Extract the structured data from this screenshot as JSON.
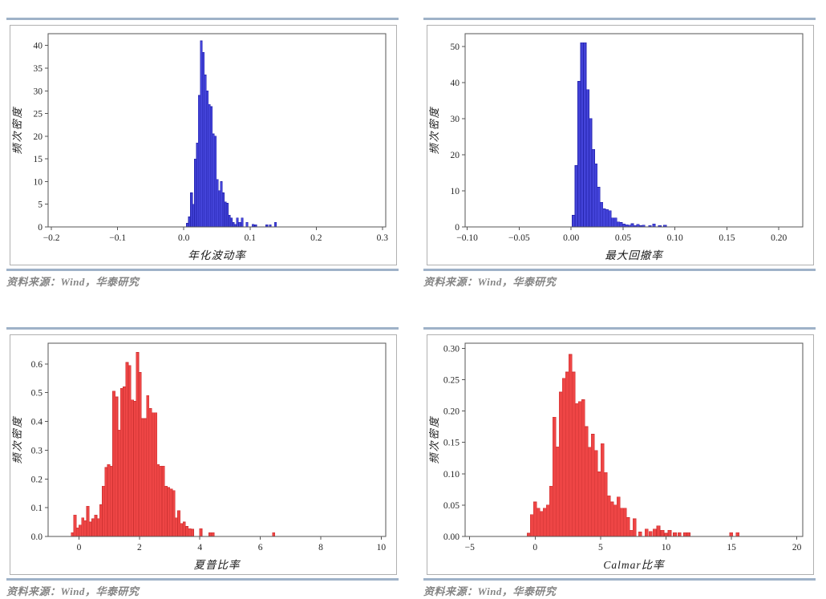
{
  "theme": {
    "rule_color": "#9fb2c8",
    "caption_color": "#858585",
    "figure_border": "#b0b0b0",
    "axis_color": "#555555",
    "tick_label_color": "#262626",
    "axis_label_color": "#1a1a1a",
    "blue_bar_fill": "#4343d9",
    "blue_bar_edge": "#2626b0",
    "red_bar_fill": "#ee4545",
    "red_bar_edge": "#cf3232",
    "plot_background": "#ffffff"
  },
  "panels": [
    {
      "caption": "资料来源：Wind，华泰研究"
    },
    {
      "caption": "资料来源：Wind，华泰研究"
    },
    {
      "caption": "资料来源：Wind，华泰研究"
    },
    {
      "caption": "资料来源：Wind，华泰研究"
    }
  ],
  "chart_data": [
    {
      "id": "annualized-volatility-histogram",
      "type": "bar",
      "title": "",
      "xlabel": "年化波动率",
      "ylabel": "频次密度",
      "legend": null,
      "grid": false,
      "bar_color": "#4343d9",
      "bar_edge_color": "#2626b0",
      "xlim": [
        -0.205,
        0.305
      ],
      "ylim": [
        0,
        42.6
      ],
      "xticks": [
        -0.2,
        -0.1,
        0.0,
        0.1,
        0.2,
        0.3
      ],
      "xtick_labels": [
        "−0.2",
        "−0.1",
        "0.0",
        "0.1",
        "0.2",
        "0.3"
      ],
      "yticks": [
        0,
        5,
        10,
        15,
        20,
        25,
        30,
        35,
        40
      ],
      "ytick_labels": [
        "0",
        "5",
        "10",
        "15",
        "20",
        "25",
        "30",
        "35",
        "40"
      ],
      "bin_start": 0.004,
      "bin_width": 0.003,
      "bin_heights": [
        0.8,
        2.2,
        7.5,
        5.0,
        15.0,
        18.5,
        29.0,
        41.0,
        38.5,
        33.5,
        30.0,
        27.0,
        26.5,
        20.5,
        20.0,
        10.5,
        8.0,
        10.0,
        7.5,
        5.5,
        5.2,
        2.6,
        2.0,
        1.0,
        0.6
      ],
      "extra_bars": [
        [
          0.0795,
          2.0
        ],
        [
          0.083,
          1.0
        ],
        [
          0.0865,
          2.0
        ],
        [
          0.094,
          1.0
        ],
        [
          0.103,
          0.6
        ],
        [
          0.107,
          0.5
        ],
        [
          0.124,
          0.5
        ],
        [
          0.129,
          0.5
        ],
        [
          0.137,
          1.0
        ]
      ]
    },
    {
      "id": "max-drawdown-histogram",
      "type": "bar",
      "title": "",
      "xlabel": "最大回撤率",
      "ylabel": "频次密度",
      "legend": null,
      "grid": false,
      "bar_color": "#4343d9",
      "bar_edge_color": "#2626b0",
      "xlim": [
        -0.102,
        0.223
      ],
      "ylim": [
        0,
        53.5
      ],
      "xticks": [
        -0.1,
        -0.05,
        0.0,
        0.05,
        0.1,
        0.15,
        0.2
      ],
      "xtick_labels": [
        "−0.10",
        "−0.05",
        "0.00",
        "0.05",
        "0.10",
        "0.15",
        "0.20"
      ],
      "yticks": [
        0,
        10,
        20,
        30,
        40,
        50
      ],
      "ytick_labels": [
        "0",
        "10",
        "20",
        "30",
        "40",
        "50"
      ],
      "bin_start": 0.001,
      "bin_width": 0.0027,
      "bin_heights": [
        3.2,
        17.0,
        40.3,
        51.0,
        51.0,
        38.0,
        30.0,
        21.5,
        17.5,
        11.0,
        6.8,
        5.0,
        4.8,
        4.5,
        2.5,
        2.5,
        1.4,
        1.2,
        0.8,
        0.6,
        0.5,
        0.9,
        0.4,
        0.7,
        0.35,
        0.5
      ],
      "extra_bars": [
        [
          0.0745,
          0.4
        ],
        [
          0.0785,
          0.8
        ],
        [
          0.084,
          0.4
        ],
        [
          0.089,
          0.5
        ]
      ]
    },
    {
      "id": "sharpe-ratio-histogram",
      "type": "bar",
      "title": "",
      "xlabel": "夏普比率",
      "ylabel": "频次密度",
      "legend": null,
      "grid": false,
      "bar_color": "#ee4545",
      "bar_edge_color": "#cf3232",
      "xlim": [
        -1.02,
        10.15
      ],
      "ylim": [
        0,
        0.672
      ],
      "xticks": [
        0,
        2,
        4,
        6,
        8,
        10
      ],
      "xtick_labels": [
        "0",
        "2",
        "4",
        "6",
        "8",
        "10"
      ],
      "yticks": [
        0.0,
        0.1,
        0.2,
        0.3,
        0.4,
        0.5,
        0.6
      ],
      "ytick_labels": [
        "0.0",
        "0.1",
        "0.2",
        "0.3",
        "0.4",
        "0.5",
        "0.6"
      ],
      "bin_start": -0.26,
      "bin_width": 0.086,
      "bin_heights": [
        0.013,
        0.075,
        0.03,
        0.04,
        0.065,
        0.055,
        0.105,
        0.05,
        0.062,
        0.075,
        0.062,
        0.11,
        0.175,
        0.24,
        0.25,
        0.245,
        0.505,
        0.485,
        0.37,
        0.515,
        0.52,
        0.605,
        0.595,
        0.475,
        0.47,
        0.64,
        0.57,
        0.41,
        0.41,
        0.49,
        0.445,
        0.43,
        0.43,
        0.25,
        0.245,
        0.245,
        0.175,
        0.17,
        0.165,
        0.16,
        0.065,
        0.09
      ],
      "extra_bars": [
        [
          3.35,
          0.045
        ],
        [
          3.44,
          0.05
        ],
        [
          3.53,
          0.035
        ],
        [
          3.62,
          0.027
        ],
        [
          3.71,
          0.025
        ],
        [
          3.99,
          0.027
        ],
        [
          4.3,
          0.013
        ],
        [
          4.39,
          0.013
        ],
        [
          6.4,
          0.013
        ]
      ]
    },
    {
      "id": "calmar-ratio-histogram",
      "type": "bar",
      "title": "",
      "xlabel": "Calmar比率",
      "ylabel": "频次密度",
      "legend": null,
      "grid": false,
      "bar_color": "#ee4545",
      "bar_edge_color": "#cf3232",
      "xlim": [
        -5.35,
        20.45
      ],
      "ylim": [
        0,
        0.308
      ],
      "xticks": [
        -5,
        0,
        5,
        10,
        15,
        20
      ],
      "xtick_labels": [
        "−5",
        "0",
        "5",
        "10",
        "15",
        "20"
      ],
      "yticks": [
        0.0,
        0.05,
        0.1,
        0.15,
        0.2,
        0.25,
        0.3
      ],
      "ytick_labels": [
        "0.00",
        "0.05",
        "0.10",
        "0.15",
        "0.20",
        "0.25",
        "0.30"
      ],
      "bin_start": -0.62,
      "bin_width": 0.245,
      "bin_heights": [
        0.005,
        0.035,
        0.055,
        0.045,
        0.04,
        0.045,
        0.05,
        0.08,
        0.19,
        0.143,
        0.23,
        0.252,
        0.262,
        0.29,
        0.262,
        0.212,
        0.215,
        0.218,
        0.175,
        0.142,
        0.163,
        0.137,
        0.103,
        0.148,
        0.102,
        0.065,
        0.055,
        0.05,
        0.063,
        0.045,
        0.045,
        0.03,
        0.01,
        0.028
      ],
      "extra_bars": [
        [
          7.9,
          0.007
        ],
        [
          8.4,
          0.012
        ],
        [
          8.7,
          0.008
        ],
        [
          9.0,
          0.012
        ],
        [
          9.3,
          0.017
        ],
        [
          9.6,
          0.01
        ],
        [
          9.9,
          0.005
        ],
        [
          10.15,
          0.01
        ],
        [
          10.55,
          0.006
        ],
        [
          10.9,
          0.006
        ],
        [
          11.35,
          0.006
        ],
        [
          11.6,
          0.006
        ],
        [
          14.85,
          0.006
        ],
        [
          15.35,
          0.006
        ]
      ]
    }
  ]
}
